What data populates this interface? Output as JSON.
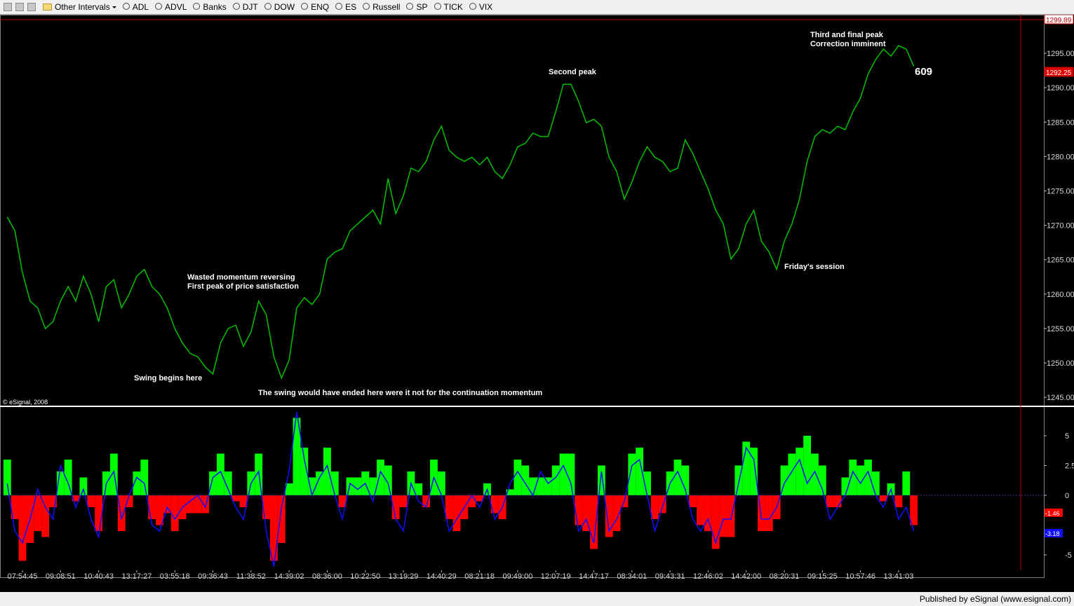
{
  "toolbar": {
    "items": [
      "Other Intervals",
      "ADL",
      "ADVL",
      "Banks",
      "DJT",
      "DOW",
      "ENQ",
      "ES",
      "Russell",
      "SP",
      "TICK",
      "VIX"
    ]
  },
  "copyright": "© eSignal, 2008",
  "footer": "Published by eSignal (www.esignal.com)",
  "chart_data": [
    {
      "type": "line",
      "color": "#00c000",
      "values": [
        1271.2,
        1269.2,
        1263.1,
        1259.0,
        1258.0,
        1255.0,
        1256.0,
        1259.0,
        1261.1,
        1259.0,
        1262.6,
        1260.0,
        1256.0,
        1261.1,
        1262.1,
        1258.0,
        1260.0,
        1262.6,
        1263.6,
        1261.1,
        1260.0,
        1258.0,
        1255.0,
        1252.9,
        1251.4,
        1250.9,
        1249.4,
        1248.4,
        1252.9,
        1255.0,
        1255.5,
        1252.4,
        1254.5,
        1259.0,
        1257.0,
        1250.9,
        1247.8,
        1250.4,
        1258.0,
        1259.5,
        1258.5,
        1260.0,
        1265.1,
        1266.1,
        1266.6,
        1269.2,
        1270.2,
        1271.2,
        1272.2,
        1270.2,
        1276.8,
        1271.7,
        1274.3,
        1278.3,
        1277.8,
        1279.3,
        1282.4,
        1284.4,
        1280.9,
        1279.9,
        1279.3,
        1279.9,
        1278.8,
        1279.9,
        1277.8,
        1276.8,
        1278.8,
        1281.4,
        1281.9,
        1283.4,
        1282.9,
        1282.9,
        1286.5,
        1290.5,
        1290.5,
        1288.0,
        1284.9,
        1285.4,
        1284.4,
        1279.9,
        1277.8,
        1273.8,
        1276.3,
        1279.3,
        1281.4,
        1279.9,
        1279.3,
        1277.8,
        1278.3,
        1282.4,
        1280.4,
        1277.8,
        1275.3,
        1272.2,
        1270.2,
        1265.1,
        1266.6,
        1270.2,
        1272.2,
        1267.7,
        1266.1,
        1263.6,
        1267.7,
        1270.2,
        1273.8,
        1279.3,
        1282.9,
        1283.9,
        1283.4,
        1284.4,
        1283.9,
        1286.5,
        1288.5,
        1292.0,
        1294.1,
        1295.6,
        1294.6,
        1296.1,
        1295.6,
        1293.1
      ],
      "ylim": [
        1243.8,
        1300.5
      ],
      "yticks": [
        {
          "value": 1245,
          "label": "1245.00"
        },
        {
          "value": 1250,
          "label": "1250.00"
        },
        {
          "value": 1255,
          "label": "1255.00"
        },
        {
          "value": 1260,
          "label": "1260.00"
        },
        {
          "value": 1265,
          "label": "1265.00"
        },
        {
          "value": 1270,
          "label": "1270.00"
        },
        {
          "value": 1275,
          "label": "1275.00"
        },
        {
          "value": 1280,
          "label": "1280.00"
        },
        {
          "value": 1285,
          "label": "1285.00"
        },
        {
          "value": 1290,
          "label": "1290.00"
        },
        {
          "value": 1295,
          "label": "1295.00"
        }
      ],
      "price_tags": [
        1299.89,
        1292.25
      ],
      "annotations": [
        "Third and final peak",
        "Correction imminent",
        "Second peak",
        "609",
        "Wasted momentum reversing",
        "First peak of price satisfaction",
        "Friday's session",
        "Swing begins here",
        "The swing would have ended here were it not for the continuation momentum"
      ]
    },
    {
      "type": "histogram-line",
      "categories": [
        null,
        null,
        "07:54:45",
        null,
        null,
        null,
        null,
        "09:08:51",
        null,
        null,
        null,
        null,
        "10:40:43",
        null,
        null,
        null,
        null,
        "13:17:27",
        null,
        null,
        null,
        null,
        "03:55:18",
        null,
        null,
        null,
        null,
        "09:36:43",
        null,
        null,
        null,
        null,
        "11:38:52",
        null,
        null,
        null,
        null,
        "14:39:02",
        null,
        null,
        null,
        null,
        "08:36:00",
        null,
        null,
        null,
        null,
        "10:22:50",
        null,
        null,
        null,
        null,
        "13:19:29",
        null,
        null,
        null,
        null,
        "14:40:29",
        null,
        null,
        null,
        null,
        "08:21:18",
        null,
        null,
        null,
        null,
        "09:49:00",
        null,
        null,
        null,
        null,
        "12:07:19",
        null,
        null,
        null,
        null,
        "14:47:17",
        null,
        null,
        null,
        null,
        "08:34:01",
        null,
        null,
        null,
        null,
        "09:43:31",
        null,
        null,
        null,
        null,
        "12:46:02",
        null,
        null,
        null,
        null,
        "14:42:00",
        null,
        null,
        null,
        null,
        "08:20:31",
        null,
        null,
        null,
        null,
        "09:15:25",
        null,
        null,
        null,
        null,
        "10:57:46",
        null,
        null,
        null,
        null,
        "13:41:03",
        null,
        null
      ],
      "series": [
        {
          "color": "#00ff00",
          "negative_color": "#ff0000",
          "values": [
            3,
            -2,
            -5.5,
            -4,
            -3,
            -3.5,
            -1,
            2,
            3,
            -0.5,
            1.5,
            -1,
            -3,
            2,
            3.5,
            -3,
            -1,
            2,
            3,
            -2,
            -2.5,
            -1.5,
            -3,
            -2,
            -1.5,
            -1.5,
            -1.5,
            2,
            3.5,
            2,
            -0.5,
            -1,
            2,
            3.5,
            -2,
            -5.5,
            -4,
            1,
            6.5,
            4,
            1.5,
            2,
            4,
            2,
            -1,
            1.5,
            1.5,
            2,
            1.5,
            3,
            2.5,
            -2,
            -1,
            2,
            1,
            -1,
            3,
            2,
            -2,
            -3,
            -2,
            -1,
            -0.5,
            1,
            -1.5,
            -2,
            0.5,
            3,
            2.5,
            1.5,
            1.5,
            1.5,
            2.5,
            3.5,
            3.5,
            -2.5,
            -3,
            -4.5,
            2.5,
            -3.5,
            -3,
            -1,
            3.5,
            4,
            2,
            -2,
            -1.5,
            2,
            3,
            2.5,
            -1,
            -2.5,
            -3,
            -4.5,
            -3.5,
            -3.5,
            2.5,
            4.5,
            4,
            -3,
            -3,
            -2,
            2.5,
            3.5,
            4,
            5,
            3.5,
            2.5,
            -1,
            -1,
            1.5,
            3,
            2.5,
            3,
            2,
            -0.5,
            1,
            -1,
            2,
            -2.5
          ]
        },
        {
          "color": "#1010ff",
          "values": [
            1,
            -3,
            -4,
            -2,
            0.5,
            -1,
            -2,
            2.5,
            1,
            -1,
            0.5,
            -2,
            -3.5,
            1,
            2,
            -2,
            0,
            1.5,
            1,
            -2.5,
            -3,
            -1,
            -2,
            -1,
            -0.5,
            0,
            -1,
            1.5,
            2,
            0.5,
            -1,
            -2,
            1,
            2,
            -3,
            -6,
            -1,
            2,
            7,
            3,
            0,
            1.5,
            2.5,
            0,
            -2,
            1,
            0.5,
            1,
            -0.5,
            2,
            1,
            -2,
            -3,
            1,
            -0.5,
            -1,
            1.5,
            0,
            -3,
            -2,
            -1,
            0,
            -1,
            0.5,
            -2,
            -1,
            1,
            2,
            1,
            0,
            2,
            1,
            1.5,
            2.5,
            1,
            -3,
            -2,
            -4,
            2,
            -3,
            -2,
            -0.5,
            2.5,
            3,
            0,
            -3,
            -1,
            1,
            2,
            0.5,
            -2,
            -3,
            -2,
            -4,
            -2,
            -2,
            1,
            4,
            3,
            -2,
            -2,
            -1,
            1,
            2,
            3,
            1,
            2,
            0.5,
            -2,
            -1,
            0,
            2,
            1,
            2,
            0,
            -1,
            0.5,
            -2,
            -1,
            -3
          ]
        }
      ],
      "ylim": [
        -6.35,
        7.29
      ],
      "yticks": [
        -5,
        0,
        2.5,
        5
      ],
      "value_tags": [
        {
          "value": -1.46,
          "color": "#ff0000"
        },
        {
          "value": -3.18,
          "color": "#1010ff"
        }
      ]
    }
  ]
}
